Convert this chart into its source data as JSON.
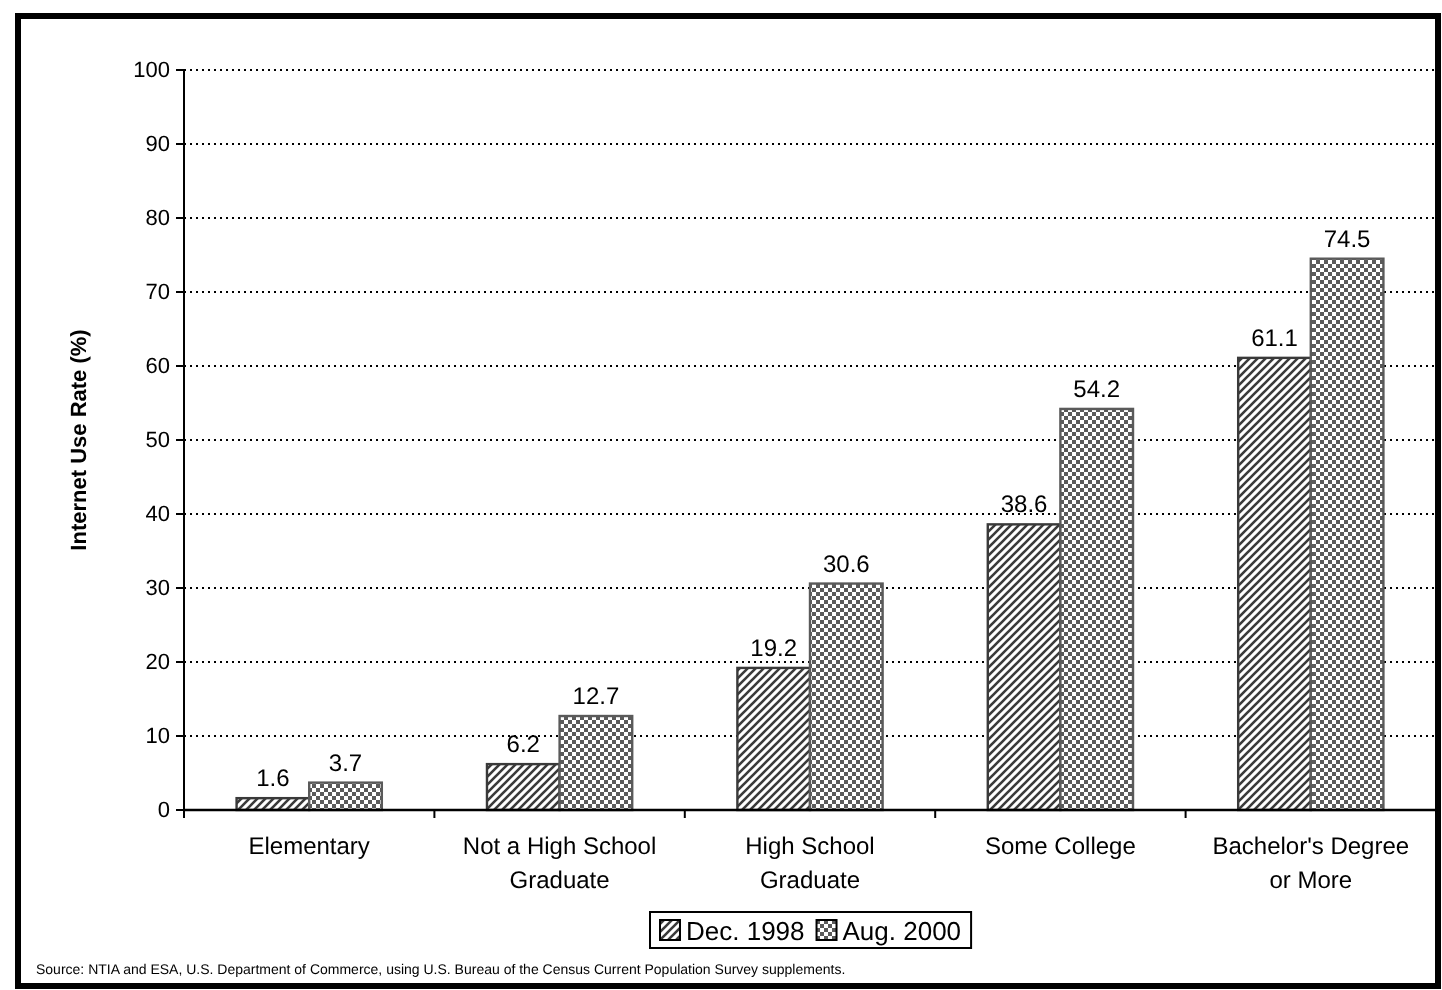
{
  "chart_data": {
    "type": "bar",
    "ylabel": "Internet Use Rate (%)",
    "categories": [
      "Elementary",
      "Not a High School Graduate",
      "High School Graduate",
      "Some College",
      "Bachelor's Degree or More"
    ],
    "series": [
      {
        "name": "Dec. 1998",
        "color": "#3a3a3a",
        "values": [
          1.6,
          6.2,
          19.2,
          38.6,
          61.1
        ]
      },
      {
        "name": "Aug. 2000",
        "color": "#5a5a5a",
        "values": [
          3.7,
          12.7,
          30.6,
          54.2,
          74.5
        ]
      }
    ],
    "ylim": [
      0,
      100
    ],
    "yticks": [
      0,
      10,
      20,
      30,
      40,
      50,
      60,
      70,
      80,
      90,
      100
    ],
    "grid": "y",
    "legend": "bottom",
    "data_labels": true,
    "annotations": [
      "Source: NTIA and ESA, U.S. Department of Commerce, using U.S. Bureau of the Census Current Population Survey supplements."
    ]
  }
}
